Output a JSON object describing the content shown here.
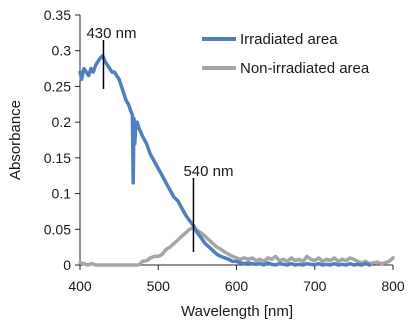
{
  "chart_data": {
    "type": "line",
    "title": "",
    "xlabel": "Wavelength [nm]",
    "ylabel": "Absorbance",
    "xlim": [
      400,
      800
    ],
    "ylim": [
      0,
      0.35
    ],
    "xticks": [
      400,
      500,
      600,
      700,
      800
    ],
    "yticks": [
      0,
      0.05,
      0.1,
      0.15,
      0.2,
      0.25,
      0.3,
      0.35
    ],
    "xtick_labels": [
      "400",
      "500",
      "600",
      "700",
      "800"
    ],
    "ytick_labels": [
      "0",
      "0.05",
      "0.1",
      "0.15",
      "0.2",
      "0.25",
      "0.3",
      "0.35"
    ],
    "grid": false,
    "legend_position": "top-right",
    "series": [
      {
        "name": "Irradiated area",
        "color": "#4f7fbf",
        "x": [
          400,
          402,
          405,
          408,
          411,
          414,
          417,
          420,
          423,
          426,
          429,
          432,
          435,
          438,
          441,
          444,
          447,
          450,
          453,
          456,
          459,
          462,
          465,
          467,
          468,
          469,
          470,
          471,
          473,
          476,
          480,
          485,
          490,
          495,
          500,
          505,
          510,
          515,
          520,
          525,
          530,
          535,
          540,
          545,
          550,
          555,
          560,
          565,
          570,
          575,
          580,
          585,
          590,
          595,
          600,
          605,
          610,
          615,
          620,
          625,
          630,
          635,
          640,
          645,
          650,
          655,
          660,
          665,
          670,
          675,
          680,
          685,
          690,
          695,
          700,
          705,
          710,
          715,
          720,
          725,
          730,
          735,
          740,
          745,
          750,
          755,
          760,
          765,
          770
        ],
        "values": [
          0.27,
          0.26,
          0.275,
          0.27,
          0.265,
          0.275,
          0.27,
          0.28,
          0.285,
          0.29,
          0.293,
          0.285,
          0.28,
          0.275,
          0.27,
          0.27,
          0.265,
          0.26,
          0.25,
          0.24,
          0.23,
          0.225,
          0.215,
          0.21,
          0.115,
          0.205,
          0.17,
          0.19,
          0.2,
          0.19,
          0.18,
          0.17,
          0.155,
          0.145,
          0.135,
          0.125,
          0.115,
          0.105,
          0.095,
          0.09,
          0.08,
          0.07,
          0.062,
          0.055,
          0.045,
          0.038,
          0.03,
          0.025,
          0.02,
          0.015,
          0.012,
          0.01,
          0.008,
          0.005,
          0.005,
          0.003,
          0.002,
          0.003,
          0.002,
          0.001,
          0.002,
          0.0,
          0.003,
          0.001,
          0.0,
          0.002,
          0.001,
          0.0,
          0.002,
          0.0,
          0.001,
          0.0,
          0.002,
          0.001,
          0.0,
          0.002,
          0.0,
          0.001,
          0.0,
          0.002,
          0.0,
          0.001,
          0.0,
          0.002,
          0.0,
          0.001,
          0.0,
          0.002,
          0.0
        ]
      },
      {
        "name": "Non-irradiated area",
        "color": "#a5a5a5",
        "x": [
          400,
          405,
          410,
          415,
          420,
          425,
          430,
          435,
          440,
          445,
          450,
          455,
          460,
          465,
          470,
          475,
          480,
          485,
          490,
          495,
          500,
          505,
          510,
          515,
          520,
          525,
          530,
          535,
          540,
          545,
          550,
          555,
          560,
          565,
          570,
          575,
          580,
          585,
          590,
          595,
          600,
          605,
          610,
          615,
          620,
          625,
          630,
          635,
          640,
          645,
          650,
          655,
          660,
          665,
          670,
          675,
          680,
          685,
          690,
          695,
          700,
          705,
          710,
          715,
          720,
          725,
          730,
          735,
          740,
          745,
          750,
          755,
          760,
          765,
          770,
          775,
          780,
          785,
          790,
          795,
          800
        ],
        "values": [
          0.003,
          0.002,
          0.0,
          0.002,
          0.0,
          0.0,
          0.0,
          0.0,
          0.0,
          0.0,
          0.0,
          0.0,
          0.0,
          0.0,
          0.0,
          0.0,
          0.005,
          0.006,
          0.01,
          0.012,
          0.012,
          0.015,
          0.022,
          0.025,
          0.03,
          0.035,
          0.04,
          0.045,
          0.05,
          0.052,
          0.048,
          0.045,
          0.04,
          0.035,
          0.03,
          0.025,
          0.022,
          0.018,
          0.015,
          0.012,
          0.01,
          0.008,
          0.01,
          0.008,
          0.01,
          0.006,
          0.008,
          0.005,
          0.01,
          0.008,
          0.012,
          0.006,
          0.008,
          0.005,
          0.01,
          0.006,
          0.008,
          0.005,
          0.012,
          0.008,
          0.006,
          0.01,
          0.005,
          0.008,
          0.006,
          0.01,
          0.005,
          0.008,
          0.006,
          0.01,
          0.008,
          0.005,
          0.003,
          0.005,
          0.002,
          0.003,
          0.004,
          0.002,
          0.003,
          0.005,
          0.01
        ]
      }
    ],
    "annotations": [
      {
        "text": "430 nm",
        "x": 430,
        "y": 0.293
      },
      {
        "text": "540 nm",
        "x": 545,
        "y": 0.05
      }
    ]
  }
}
